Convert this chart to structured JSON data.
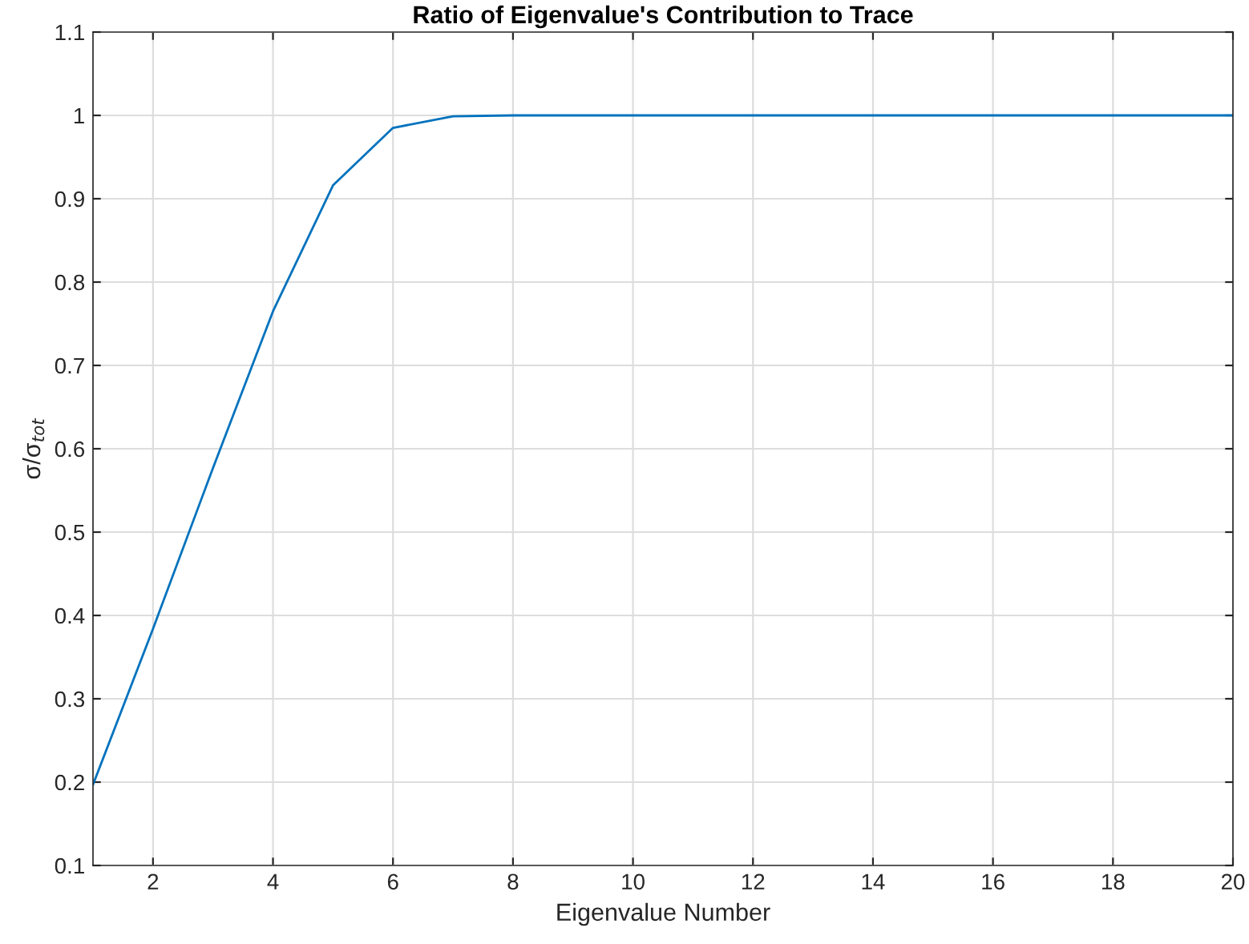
{
  "chart_data": {
    "type": "line",
    "title": "Ratio of Eigenvalue's Contribution to Trace",
    "xlabel": "Eigenvalue Number",
    "ylabel": "σ/σ$_{tot}$",
    "x": [
      1,
      2,
      3,
      4,
      5,
      6,
      7,
      8,
      9,
      10,
      11,
      12,
      13,
      14,
      15,
      16,
      17,
      18,
      19,
      20
    ],
    "series": [
      {
        "color": "#0072bd",
        "values": [
          0.197,
          0.384,
          0.577,
          0.765,
          0.916,
          0.985,
          0.999,
          1,
          1,
          1,
          1,
          1,
          1,
          1,
          1,
          1,
          1,
          1,
          1,
          1
        ]
      }
    ],
    "xlim": [
      1,
      20
    ],
    "xticks": [
      2,
      4,
      6,
      8,
      10,
      12,
      14,
      16,
      18,
      20
    ],
    "ylim": [
      0.1,
      1.1
    ],
    "yticks": [
      0.1,
      0.2,
      0.3,
      0.4,
      0.5,
      0.6,
      0.7,
      0.8,
      0.9,
      1,
      1.1
    ],
    "grid": true,
    "marker": "none",
    "line_style": "solid"
  }
}
